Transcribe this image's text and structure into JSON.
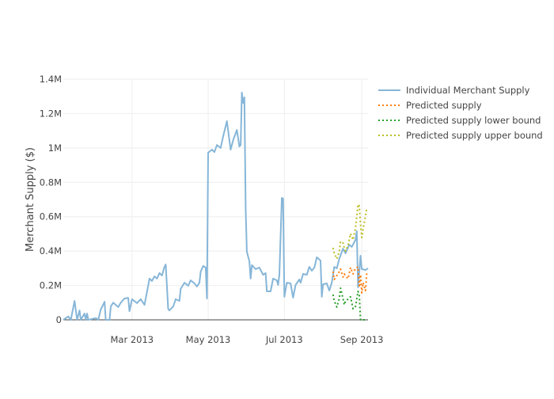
{
  "chart_data": {
    "type": "line",
    "title": "",
    "xlabel": "",
    "ylabel": "Merchant Supply ($)",
    "xlim": [
      "2013-01-05",
      "2013-09-06"
    ],
    "ylim": [
      0,
      1400000
    ],
    "grid": true,
    "legend_position": "right",
    "x_ticks": [
      {
        "date": "2013-03-01",
        "label": "Mar 2013"
      },
      {
        "date": "2013-05-01",
        "label": "May 2013"
      },
      {
        "date": "2013-07-01",
        "label": "Jul 2013"
      },
      {
        "date": "2013-09-01",
        "label": "Sep 2013"
      }
    ],
    "y_ticks": [
      {
        "value": 0,
        "label": "0"
      },
      {
        "value": 200000,
        "label": "0.2M"
      },
      {
        "value": 400000,
        "label": "0.4M"
      },
      {
        "value": 600000,
        "label": "0.6M"
      },
      {
        "value": 800000,
        "label": "0.8M"
      },
      {
        "value": 1000000,
        "label": "1M"
      },
      {
        "value": 1200000,
        "label": "1.2M"
      },
      {
        "value": 1400000,
        "label": "1.4M"
      }
    ],
    "series": [
      {
        "name": "Individual Merchant Supply",
        "color": "#86b6d8",
        "dash": "solid",
        "x": [
          "2013-01-05",
          "2013-01-09",
          "2013-01-11",
          "2013-01-14",
          "2013-01-16",
          "2013-01-18",
          "2013-01-19",
          "2013-01-22",
          "2013-01-23",
          "2013-01-24",
          "2013-01-25",
          "2013-01-31",
          "2013-02-02",
          "2013-02-04",
          "2013-02-07",
          "2013-02-08",
          "2013-02-11",
          "2013-02-12",
          "2013-02-14",
          "2013-02-18",
          "2013-02-20",
          "2013-02-23",
          "2013-02-26",
          "2013-02-27",
          "2013-03-01",
          "2013-03-05",
          "2013-03-08",
          "2013-03-11",
          "2013-03-15",
          "2013-03-17",
          "2013-03-19",
          "2013-03-21",
          "2013-03-23",
          "2013-03-25",
          "2013-03-27",
          "2013-03-28",
          "2013-03-30",
          "2013-03-31",
          "2013-04-03",
          "2013-04-05",
          "2013-04-08",
          "2013-04-09",
          "2013-04-12",
          "2013-04-15",
          "2013-04-17",
          "2013-04-20",
          "2013-04-22",
          "2013-04-24",
          "2013-04-25",
          "2013-04-27",
          "2013-04-29",
          "2013-04-30",
          "2013-05-01",
          "2013-05-04",
          "2013-05-06",
          "2013-05-08",
          "2013-05-11",
          "2013-05-13",
          "2013-05-16",
          "2013-05-19",
          "2013-05-21",
          "2013-05-24",
          "2013-05-26",
          "2013-05-27",
          "2013-05-28",
          "2013-05-29",
          "2013-05-30",
          "2013-05-31",
          "2013-06-01",
          "2013-06-03",
          "2013-06-04",
          "2013-06-05",
          "2013-06-08",
          "2013-06-11",
          "2013-06-14",
          "2013-06-16",
          "2013-06-17",
          "2013-06-20",
          "2013-06-22",
          "2013-06-25",
          "2013-06-26",
          "2013-06-27",
          "2013-06-29",
          "2013-06-30",
          "2013-07-01",
          "2013-07-03",
          "2013-07-06",
          "2013-07-08",
          "2013-07-10",
          "2013-07-13",
          "2013-07-14",
          "2013-07-16",
          "2013-07-19",
          "2013-07-21",
          "2013-07-23",
          "2013-07-25",
          "2013-07-27",
          "2013-07-30",
          "2013-07-31",
          "2013-08-01",
          "2013-08-04",
          "2013-08-06",
          "2013-08-08",
          "2013-08-10",
          "2013-08-12",
          "2013-08-14",
          "2013-08-17",
          "2013-08-19",
          "2013-08-22",
          "2013-08-24",
          "2013-08-27",
          "2013-08-28",
          "2013-08-29",
          "2013-08-30",
          "2013-08-31",
          "2013-09-01",
          "2013-09-04",
          "2013-09-06"
        ],
        "y": [
          0,
          20000,
          0,
          110000,
          0,
          55000,
          0,
          37000,
          0,
          37000,
          0,
          10000,
          0,
          60000,
          105000,
          0,
          0,
          78000,
          100000,
          74000,
          100000,
          124000,
          128000,
          50000,
          120000,
          97000,
          120000,
          87000,
          240000,
          226000,
          253000,
          240000,
          272000,
          258000,
          308000,
          322000,
          64000,
          55000,
          78000,
          120000,
          110000,
          180000,
          216000,
          198000,
          230000,
          212000,
          194000,
          216000,
          281000,
          313000,
          304000,
          124000,
          972000,
          990000,
          976000,
          1017000,
          1000000,
          1068000,
          1156000,
          990000,
          1045000,
          1105000,
          1008000,
          1017000,
          1322000,
          1262000,
          1294000,
          650000,
          396000,
          341000,
          240000,
          318000,
          295000,
          304000,
          262000,
          272000,
          166000,
          166000,
          240000,
          230000,
          203000,
          262000,
          709000,
          705000,
          134000,
          216000,
          212000,
          129000,
          203000,
          235000,
          216000,
          267000,
          262000,
          308000,
          286000,
          304000,
          364000,
          345000,
          134000,
          207000,
          212000,
          170000,
          216000,
          308000,
          300000,
          355000,
          414000,
          387000,
          437000,
          424000,
          465000,
          516000,
          189000,
          281000,
          373000,
          295000,
          290000,
          300000
        ]
      },
      {
        "name": "Predicted supply",
        "color": "#ff7f0e",
        "dash": "dot",
        "x": [
          "2013-08-09",
          "2013-08-10",
          "2013-08-12",
          "2013-08-14",
          "2013-08-15",
          "2013-08-17",
          "2013-08-18",
          "2013-08-19",
          "2013-08-21",
          "2013-08-23",
          "2013-08-25",
          "2013-08-27",
          "2013-08-29",
          "2013-08-30",
          "2013-08-31",
          "2013-09-01",
          "2013-09-02",
          "2013-09-04",
          "2013-09-05"
        ],
        "y": [
          281000,
          235000,
          258000,
          280000,
          295000,
          249000,
          267000,
          255000,
          240000,
          304000,
          267000,
          300000,
          308000,
          189000,
          262000,
          157000,
          216000,
          170000,
          272000
        ]
      },
      {
        "name": "Predicted supply lower bound",
        "color": "#2ca02c",
        "dash": "dot",
        "x": [
          "2013-08-09",
          "2013-08-10",
          "2013-08-12",
          "2013-08-14",
          "2013-08-15",
          "2013-08-17",
          "2013-08-18",
          "2013-08-19",
          "2013-08-21",
          "2013-08-23",
          "2013-08-25",
          "2013-08-27",
          "2013-08-29",
          "2013-08-30",
          "2013-08-31",
          "2013-09-01",
          "2013-09-02",
          "2013-09-04",
          "2013-09-05"
        ],
        "y": [
          147000,
          110000,
          74000,
          124000,
          184000,
          124000,
          87000,
          110000,
          120000,
          134000,
          64000,
          78000,
          166000,
          143000,
          0,
          0,
          0,
          0,
          0
        ]
      },
      {
        "name": "Predicted supply upper bound",
        "color": "#bcbd22",
        "dash": "dot",
        "x": [
          "2013-08-09",
          "2013-08-10",
          "2013-08-12",
          "2013-08-14",
          "2013-08-15",
          "2013-08-17",
          "2013-08-18",
          "2013-08-19",
          "2013-08-21",
          "2013-08-23",
          "2013-08-25",
          "2013-08-27",
          "2013-08-29",
          "2013-08-30",
          "2013-08-31",
          "2013-09-01",
          "2013-09-02",
          "2013-09-04",
          "2013-09-05"
        ],
        "y": [
          419000,
          387000,
          355000,
          396000,
          456000,
          447000,
          419000,
          400000,
          433000,
          502000,
          465000,
          534000,
          672000,
          663000,
          557000,
          479000,
          525000,
          603000,
          654000
        ]
      }
    ]
  }
}
